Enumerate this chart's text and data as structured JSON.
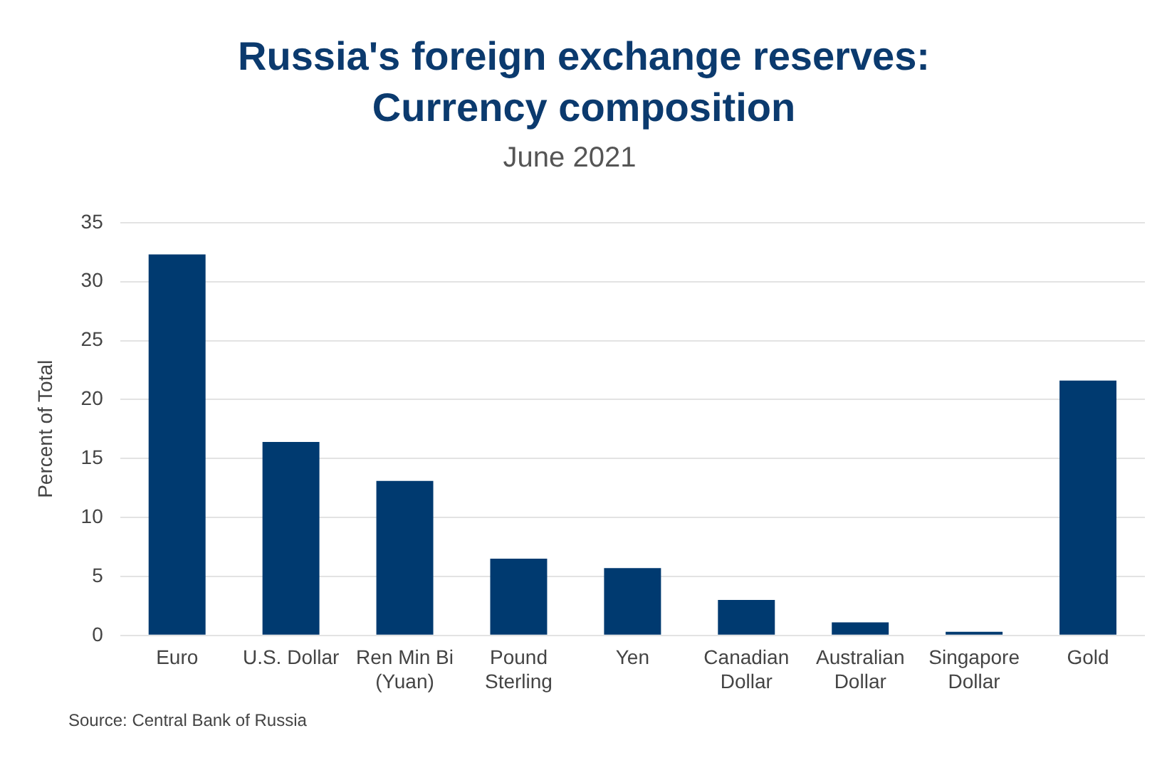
{
  "chart_data": {
    "type": "bar",
    "title": "Russia's foreign exchange reserves: Currency composition",
    "subtitle": "June 2021",
    "ylabel": "Percent of Total",
    "categories": [
      "Euro",
      "U.S. Dollar",
      "Ren Min Bi (Yuan)",
      "Pound Sterling",
      "Yen",
      "Canadian Dollar",
      "Australian Dollar",
      "Singapore Dollar",
      "Gold"
    ],
    "values": [
      32.3,
      16.4,
      13.1,
      6.5,
      5.7,
      3.0,
      1.1,
      0.3,
      21.6
    ],
    "color": "#003a70",
    "ylim": [
      0,
      35
    ],
    "yticks": [
      0,
      5,
      10,
      15,
      20,
      25,
      30,
      35
    ],
    "grid": "y",
    "legend": false,
    "annotations": [
      "Source: Central Bank of Russia"
    ]
  }
}
